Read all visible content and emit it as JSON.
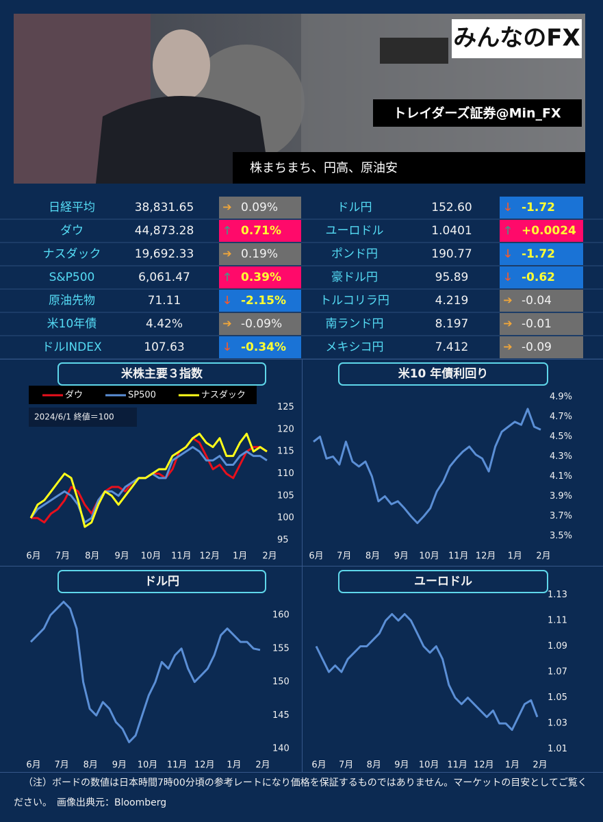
{
  "header": {
    "logo": "みんなのFX",
    "account": "トレイダーズ証券@Min_FX",
    "headline": "株まちまち、円高、原油安"
  },
  "table": {
    "rows": [
      [
        {
          "name": "日経平均",
          "value": "38,831.65",
          "arrow": "➔",
          "change": "0.09%",
          "color": "#6e6e6e",
          "arrow_color": "#f0a63a",
          "text_color": "#f2f2f2"
        },
        {
          "name": "ドル円",
          "value": "152.60",
          "arrow": "🡓",
          "change": "-1.72",
          "color": "#1a73d6",
          "arrow_color": "#ff5a24",
          "text_color": "#ffff33"
        }
      ],
      [
        {
          "name": "ダウ",
          "value": "44,873.28",
          "arrow": "🡑",
          "change": "0.71%",
          "color": "#ff0a6a",
          "arrow_color": "#3e9e86",
          "text_color": "#ffff33"
        },
        {
          "name": "ユーロドル",
          "value": "1.0401",
          "arrow": "🡑",
          "change": "+0.0024",
          "color": "#ff0a6a",
          "arrow_color": "#3e9e86",
          "text_color": "#ffff33"
        }
      ],
      [
        {
          "name": "ナスダック",
          "value": "19,692.33",
          "arrow": "➔",
          "change": "0.19%",
          "color": "#6e6e6e",
          "arrow_color": "#f0a63a",
          "text_color": "#f2f2f2"
        },
        {
          "name": "ポンド円",
          "value": "190.77",
          "arrow": "🡓",
          "change": "-1.72",
          "color": "#1a73d6",
          "arrow_color": "#ff5a24",
          "text_color": "#ffff33"
        }
      ],
      [
        {
          "name": "S&P500",
          "value": "6,061.47",
          "arrow": "🡑",
          "change": "0.39%",
          "color": "#ff0a6a",
          "arrow_color": "#3e9e86",
          "text_color": "#ffff33"
        },
        {
          "name": "豪ドル円",
          "value": "95.89",
          "arrow": "🡓",
          "change": "-0.62",
          "color": "#1a73d6",
          "arrow_color": "#ff5a24",
          "text_color": "#ffff33"
        }
      ],
      [
        {
          "name": "原油先物",
          "value": "71.11",
          "arrow": "🡓",
          "change": "-2.15%",
          "color": "#1a73d6",
          "arrow_color": "#ff5a24",
          "text_color": "#ffff33"
        },
        {
          "name": "トルコリラ円",
          "value": "4.219",
          "arrow": "➔",
          "change": "-0.04",
          "color": "#6e6e6e",
          "arrow_color": "#f0a63a",
          "text_color": "#f2f2f2"
        }
      ],
      [
        {
          "name": "米10年債",
          "value": "4.42%",
          "arrow": "➔",
          "change": "-0.09%",
          "color": "#6e6e6e",
          "arrow_color": "#f0a63a",
          "text_color": "#f2f2f2"
        },
        {
          "name": "南ランド円",
          "value": "8.197",
          "arrow": "➔",
          "change": "-0.01",
          "color": "#6e6e6e",
          "arrow_color": "#f0a63a",
          "text_color": "#f2f2f2"
        }
      ],
      [
        {
          "name": "ドルINDEX",
          "value": "107.63",
          "arrow": "🡓",
          "change": "-0.34%",
          "color": "#1a73d6",
          "arrow_color": "#ff5a24",
          "text_color": "#ffff33"
        },
        {
          "name": "メキシコ円",
          "value": "7.412",
          "arrow": "➔",
          "change": "-0.09",
          "color": "#6e6e6e",
          "arrow_color": "#f0a63a",
          "text_color": "#f2f2f2"
        }
      ]
    ]
  },
  "chart_data": [
    {
      "type": "line",
      "title": "米株主要３指数",
      "annotation": "2024/6/1 終値＝100",
      "legend": true,
      "xlim": [
        0,
        35
      ],
      "xticks": [
        {
          "value": 0,
          "label": "6月"
        },
        {
          "value": 4.3,
          "label": "7月"
        },
        {
          "value": 8.7,
          "label": "8月"
        },
        {
          "value": 13.1,
          "label": "9月"
        },
        {
          "value": 17.4,
          "label": "10月"
        },
        {
          "value": 21.9,
          "label": "11月"
        },
        {
          "value": 26.1,
          "label": "12月"
        },
        {
          "value": 30.6,
          "label": "1月"
        },
        {
          "value": 35,
          "label": "2月"
        }
      ],
      "ylim": [
        94,
        128
      ],
      "yticks": [
        125,
        120,
        115,
        110,
        105,
        100,
        95
      ],
      "series": [
        {
          "name": "ダウ",
          "color": "#e8101c",
          "values": [
            100,
            100,
            99,
            101,
            102,
            104,
            107,
            106,
            103,
            101,
            104,
            106,
            107,
            107,
            106,
            108,
            109,
            109,
            110,
            110,
            109,
            111,
            115,
            116,
            118,
            117,
            114,
            111,
            112,
            110,
            109,
            112,
            115,
            116,
            116,
            115
          ]
        },
        {
          "name": "SP500",
          "color": "#5b8fd6",
          "values": [
            100,
            102,
            103,
            104,
            105,
            106,
            105,
            103,
            99,
            100,
            104,
            106,
            106,
            105,
            107,
            108,
            109,
            109,
            110,
            109,
            109,
            113,
            114,
            115,
            116,
            115,
            113,
            113,
            114,
            112,
            112,
            114,
            115,
            114,
            114,
            113
          ]
        },
        {
          "name": "ナスダック",
          "color": "#ffff1a",
          "values": [
            100,
            103,
            104,
            106,
            108,
            110,
            109,
            104,
            98,
            99,
            103,
            106,
            105,
            103,
            105,
            107,
            109,
            109,
            110,
            111,
            111,
            114,
            115,
            116,
            118,
            119,
            117,
            116,
            118,
            114,
            114,
            117,
            119,
            115,
            116,
            115
          ]
        }
      ]
    },
    {
      "type": "line",
      "title": "米10 年債利回り",
      "xlim": [
        0,
        35
      ],
      "xticks": [
        {
          "value": 0,
          "label": "6月"
        },
        {
          "value": 4.3,
          "label": "7月"
        },
        {
          "value": 8.7,
          "label": "8月"
        },
        {
          "value": 13.1,
          "label": "9月"
        },
        {
          "value": 17.4,
          "label": "10月"
        },
        {
          "value": 21.9,
          "label": "11月"
        },
        {
          "value": 26.1,
          "label": "12月"
        },
        {
          "value": 30.6,
          "label": "1月"
        },
        {
          "value": 35,
          "label": "2月"
        }
      ],
      "ylim": [
        3.4,
        5.0
      ],
      "yticks": [
        {
          "value": 4.9,
          "label": "4.9%"
        },
        {
          "value": 4.7,
          "label": "4.7%"
        },
        {
          "value": 4.5,
          "label": "4.5%"
        },
        {
          "value": 4.3,
          "label": "4.3%"
        },
        {
          "value": 4.1,
          "label": "4.1%"
        },
        {
          "value": 3.9,
          "label": "3.9%"
        },
        {
          "value": 3.7,
          "label": "3.7%"
        },
        {
          "value": 3.5,
          "label": "3.5%"
        }
      ],
      "series": [
        {
          "color": "#5b8fd6",
          "values": [
            4.45,
            4.5,
            4.28,
            4.3,
            4.22,
            4.45,
            4.25,
            4.2,
            4.25,
            4.1,
            3.85,
            3.9,
            3.82,
            3.85,
            3.78,
            3.7,
            3.63,
            3.7,
            3.78,
            3.95,
            4.05,
            4.2,
            4.28,
            4.35,
            4.4,
            4.32,
            4.28,
            4.15,
            4.4,
            4.55,
            4.6,
            4.65,
            4.62,
            4.78,
            4.6,
            4.57
          ]
        }
      ]
    },
    {
      "type": "line",
      "title": "ドル円",
      "xlim": [
        0,
        35
      ],
      "xticks": [
        {
          "value": 0,
          "label": "6月"
        },
        {
          "value": 4.3,
          "label": "7月"
        },
        {
          "value": 8.7,
          "label": "8月"
        },
        {
          "value": 13.1,
          "label": "9月"
        },
        {
          "value": 17.4,
          "label": "10月"
        },
        {
          "value": 21.9,
          "label": "11月"
        },
        {
          "value": 26.1,
          "label": "12月"
        },
        {
          "value": 30.6,
          "label": "1月"
        },
        {
          "value": 35,
          "label": "2月"
        }
      ],
      "ylim": [
        139,
        164
      ],
      "yticks": [
        160,
        155,
        150,
        145,
        140
      ],
      "series": [
        {
          "color": "#5b8fd6",
          "values": [
            156,
            157,
            158,
            160,
            161,
            162,
            161,
            158,
            150,
            146,
            145,
            147,
            146,
            144,
            143,
            141,
            142,
            145,
            148,
            150,
            153,
            152,
            154,
            155,
            152,
            150,
            151,
            152,
            154,
            157,
            158,
            157,
            156,
            156,
            155,
            154.8
          ]
        }
      ]
    },
    {
      "type": "line",
      "title": "ユーロドル",
      "xlim": [
        0,
        35
      ],
      "xticks": [
        {
          "value": 0,
          "label": "6月"
        },
        {
          "value": 4.3,
          "label": "7月"
        },
        {
          "value": 8.7,
          "label": "8月"
        },
        {
          "value": 13.1,
          "label": "9月"
        },
        {
          "value": 17.4,
          "label": "10月"
        },
        {
          "value": 21.9,
          "label": "11月"
        },
        {
          "value": 26.1,
          "label": "12月"
        },
        {
          "value": 30.6,
          "label": "1月"
        },
        {
          "value": 35,
          "label": "2月"
        }
      ],
      "ylim": [
        1.005,
        1.135
      ],
      "yticks": [
        1.13,
        1.11,
        1.09,
        1.07,
        1.05,
        1.03,
        1.01
      ],
      "series": [
        {
          "color": "#5b8fd6",
          "values": [
            1.09,
            1.08,
            1.07,
            1.075,
            1.07,
            1.08,
            1.085,
            1.09,
            1.09,
            1.095,
            1.1,
            1.11,
            1.115,
            1.11,
            1.115,
            1.11,
            1.1,
            1.09,
            1.085,
            1.09,
            1.08,
            1.06,
            1.05,
            1.045,
            1.05,
            1.045,
            1.04,
            1.035,
            1.04,
            1.03,
            1.03,
            1.025,
            1.035,
            1.045,
            1.048,
            1.035
          ]
        }
      ]
    }
  ],
  "footer": {
    "note": "（注）ボードの数値は日本時間7時00分頃の参考レートになり価格を保証するものではありません。マーケットの目安としてご覧ください。　画像出典元：Bloomberg"
  }
}
